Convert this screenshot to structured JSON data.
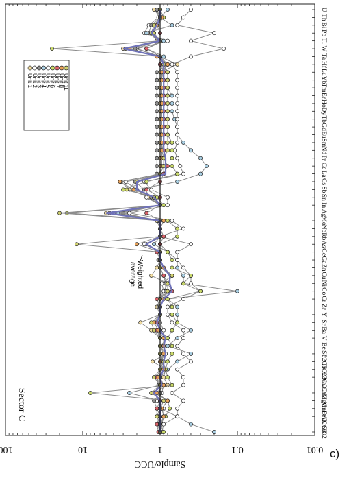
{
  "panel_label": "c)",
  "chart_data": {
    "type": "line",
    "orientation": "rotated-90",
    "title": "Sector C",
    "xlabel": "",
    "ylabel": "Sample/UCC",
    "yscale": "log",
    "ylim": [
      0.01,
      100
    ],
    "yticks": [
      {
        "value": 100,
        "label": "100"
      },
      {
        "value": 10,
        "label": "10"
      },
      {
        "value": 1,
        "label": "1"
      },
      {
        "value": 0.1,
        "label": "0.1"
      },
      {
        "value": 0.01,
        "label": "0.01"
      }
    ],
    "reference_line": 1,
    "legend_position": "inside upper-left of the plot",
    "annotation": "Weighted average",
    "categories": [
      "SiO2",
      "Al2O3",
      "FeO",
      "MnO",
      "MgO",
      "CaO",
      "Na2O",
      "K2O",
      "TiO2",
      "P2O5",
      "Sc",
      "Be",
      "V",
      "Ba",
      "Sr",
      "Y",
      "Zr",
      "Cr",
      "Co",
      "Ni",
      "Cu",
      "Zn",
      "Ga",
      "Ge",
      "As",
      "Rb",
      "Nb",
      "Mo",
      "Ag",
      "In",
      "Sn",
      "Sb",
      "Cs",
      "La",
      "Ce",
      "Pr",
      "Nd",
      "Sm",
      "Eu",
      "Gd",
      "Tb",
      "Dy",
      "Ho",
      "Er",
      "Tm",
      "Yb",
      "Lu",
      "Hf",
      "Ta",
      "W",
      "Tl",
      "Pb",
      "Bi",
      "Th",
      "U"
    ],
    "series": [
      {
        "name": "Unit 1",
        "fill": "#f0dba0",
        "values": [
          1.02,
          1.0,
          1.05,
          0.95,
          0.8,
          1.15,
          0.8,
          0.9,
          0.85,
          1.25,
          0.85,
          1.0,
          1.0,
          1.3,
          1.8,
          1.0,
          1.1,
          1.0,
          0.9,
          0.8,
          1.3,
          1.1,
          1.0,
          1.0,
          1.5,
          1.0,
          1.0,
          1.1,
          5.0,
          1.0,
          1.4,
          2.5,
          3.2,
          1.0,
          1.0,
          1.0,
          1.0,
          1.0,
          1.0,
          1.0,
          1.0,
          1.0,
          1.0,
          1.0,
          1.0,
          1.0,
          1.0,
          0.6,
          1.0,
          3.0,
          1.1,
          1.3,
          1.2,
          1.0,
          1.2
        ]
      },
      {
        "name": "Unit 2",
        "fill": "#ffffff",
        "values": [
          0.98,
          0.95,
          0.9,
          0.9,
          1.1,
          0.95,
          0.9,
          1.0,
          0.8,
          1.0,
          0.85,
          0.9,
          0.9,
          0.9,
          1.0,
          1.0,
          1.0,
          1.1,
          0.9,
          0.95,
          0.7,
          0.9,
          1.0,
          1.0,
          1.6,
          0.9,
          1.0,
          1.0,
          4.0,
          1.0,
          1.5,
          2.0,
          2.8,
          0.9,
          0.9,
          0.9,
          0.95,
          0.9,
          0.9,
          0.9,
          0.9,
          0.9,
          0.9,
          0.9,
          0.9,
          0.9,
          0.95,
          0.8,
          1.0,
          2.0,
          0.8,
          1.6,
          1.4,
          1.05,
          1.1
        ]
      },
      {
        "name": "Unit 3",
        "fill": "#8f8f8f",
        "values": [
          1.0,
          1.08,
          1.1,
          1.1,
          1.2,
          1.0,
          1.05,
          1.1,
          0.85,
          0.95,
          0.9,
          1.0,
          0.8,
          1.0,
          1.1,
          1.0,
          1.05,
          1.0,
          0.85,
          0.85,
          0.9,
          1.0,
          1.05,
          1.0,
          1.0,
          1.0,
          1.0,
          1.05,
          3.0,
          1.0,
          1.3,
          1.6,
          2.1,
          1.1,
          1.1,
          1.1,
          1.1,
          1.1,
          1.1,
          1.1,
          1.1,
          1.1,
          1.1,
          1.1,
          1.1,
          1.1,
          1.1,
          0.8,
          1.0,
          2.1,
          1.05,
          1.4,
          1.3,
          1.0,
          1.1
        ]
      },
      {
        "name": "Unit 4",
        "fill": "#a9cfe3",
        "values": [
          0.2,
          0.4,
          0.6,
          1.0,
          1.0,
          2.5,
          1.0,
          1.0,
          0.8,
          0.6,
          0.4,
          0.8,
          0.6,
          0.4,
          0.6,
          0.6,
          0.6,
          0.8,
          0.1,
          0.5,
          0.5,
          0.6,
          0.6,
          0.8,
          1.2,
          1.0,
          1.0,
          1.0,
          3.5,
          1.0,
          1.2,
          2.0,
          0.6,
          0.3,
          0.25,
          0.3,
          0.4,
          0.5,
          0.6,
          0.6,
          0.65,
          0.7,
          0.7,
          0.7,
          0.8,
          0.8,
          0.8,
          0.9,
          0.9,
          1.5,
          0.9,
          1.5,
          0.7,
          1.0,
          0.8
        ]
      },
      {
        "name": "Unit 5",
        "fill": "#ffffff",
        "values": [
          0.95,
          0.9,
          0.6,
          0.6,
          0.5,
          0.7,
          0.5,
          0.5,
          0.6,
          0.4,
          0.5,
          0.6,
          0.5,
          0.5,
          0.7,
          0.8,
          0.8,
          0.5,
          0.3,
          0.4,
          0.4,
          0.5,
          0.6,
          0.6,
          0.4,
          1.0,
          0.5,
          0.7,
          2.5,
          0.8,
          0.8,
          1.3,
          1.6,
          0.5,
          0.55,
          0.6,
          0.65,
          0.6,
          0.6,
          0.6,
          0.6,
          0.6,
          0.6,
          0.6,
          0.6,
          0.6,
          0.6,
          0.7,
          0.4,
          0.15,
          0.4,
          0.2,
          0.6,
          0.5,
          0.4
        ]
      },
      {
        "name": "Unit 6",
        "fill": "#c9d96a",
        "values": [
          0.9,
          1.0,
          0.85,
          0.75,
          0.8,
          8.0,
          0.7,
          0.8,
          0.85,
          0.8,
          0.7,
          0.7,
          0.8,
          0.7,
          0.6,
          0.7,
          0.7,
          0.8,
          0.3,
          0.5,
          0.4,
          0.7,
          0.7,
          0.8,
          1.0,
          0.6,
          0.6,
          0.8,
          16.0,
          0.9,
          1.1,
          3.0,
          1.5,
          0.6,
          0.7,
          0.7,
          0.7,
          0.7,
          0.8,
          0.8,
          0.8,
          0.8,
          0.8,
          0.8,
          0.8,
          0.8,
          0.8,
          1.0,
          1.0,
          25.0,
          1.0,
          1.3,
          1.1,
          0.9,
          1.0
        ]
      },
      {
        "name": "Unit 7",
        "fill": "#d9626a",
        "values": [
          1.05,
          1.1,
          1.0,
          1.1,
          1.0,
          1.2,
          1.0,
          1.1,
          1.0,
          1.0,
          1.0,
          1.0,
          1.0,
          1.1,
          1.1,
          1.0,
          1.0,
          1.1,
          0.7,
          0.8,
          0.9,
          1.0,
          1.0,
          1.1,
          1.0,
          0.9,
          1.0,
          1.0,
          1.5,
          1.0,
          1.0,
          1.5,
          1.0,
          0.9,
          0.8,
          0.9,
          0.9,
          0.9,
          0.9,
          0.9,
          0.9,
          0.9,
          0.9,
          0.9,
          0.9,
          0.9,
          0.9,
          1.0,
          1.0,
          1.5,
          1.0,
          1.0,
          1.1,
          1.0,
          1.0
        ]
      },
      {
        "name": "Unit 8",
        "fill": "#e6a15a",
        "values": [
          1.0,
          1.0,
          0.9,
          0.95,
          0.8,
          1.1,
          0.9,
          1.05,
          0.9,
          1.0,
          0.9,
          0.9,
          0.9,
          1.05,
          1.2,
          1.0,
          1.0,
          0.9,
          0.8,
          0.8,
          0.7,
          0.9,
          1.0,
          1.0,
          2.0,
          1.0,
          1.0,
          0.9,
          4.5,
          1.0,
          1.2,
          2.2,
          3.3,
          1.0,
          0.95,
          0.95,
          0.95,
          0.95,
          0.95,
          0.95,
          0.95,
          0.95,
          0.95,
          0.95,
          0.95,
          0.95,
          0.95,
          0.8,
          1.1,
          2.5,
          1.0,
          1.2,
          1.1,
          0.95,
          1.0
        ]
      },
      {
        "name": "Unit 11",
        "fill": "#cfd070",
        "values": [
          1.0,
          1.0,
          1.1,
          1.0,
          0.9,
          1.3,
          1.0,
          1.2,
          1.0,
          0.9,
          1.0,
          1.0,
          1.0,
          1.2,
          1.3,
          1.0,
          1.0,
          1.0,
          0.8,
          0.8,
          0.7,
          1.0,
          1.0,
          1.0,
          12.0,
          1.0,
          1.0,
          1.0,
          20.0,
          1.0,
          1.2,
          2.7,
          2.0,
          1.0,
          0.9,
          0.9,
          0.8,
          0.8,
          0.8,
          0.8,
          0.8,
          0.8,
          0.8,
          0.8,
          0.8,
          0.8,
          0.8,
          0.9,
          1.0,
          2.8,
          1.0,
          1.2,
          1.2,
          1.0,
          1.0
        ]
      }
    ],
    "weighted_average": [
      1.0,
      1.0,
      1.0,
      1.0,
      1.0,
      1.2,
      0.95,
      1.0,
      0.9,
      0.9,
      0.85,
      0.9,
      0.85,
      1.0,
      1.1,
      1.0,
      1.0,
      0.9,
      0.7,
      0.75,
      0.75,
      0.9,
      1.0,
      1.0,
      1.5,
      1.0,
      1.0,
      1.0,
      5.0,
      1.0,
      1.2,
      2.0,
      2.0,
      0.85,
      0.85,
      0.85,
      0.9,
      0.9,
      0.9,
      0.9,
      0.9,
      0.9,
      0.9,
      0.9,
      0.9,
      0.9,
      0.9,
      0.9,
      1.0,
      3.0,
      1.0,
      1.3,
      1.1,
      1.0,
      1.0
    ]
  },
  "style": {
    "line_color": "#8a8a8a",
    "average_color": "#6f72b8",
    "marker_stroke": "#222222"
  }
}
